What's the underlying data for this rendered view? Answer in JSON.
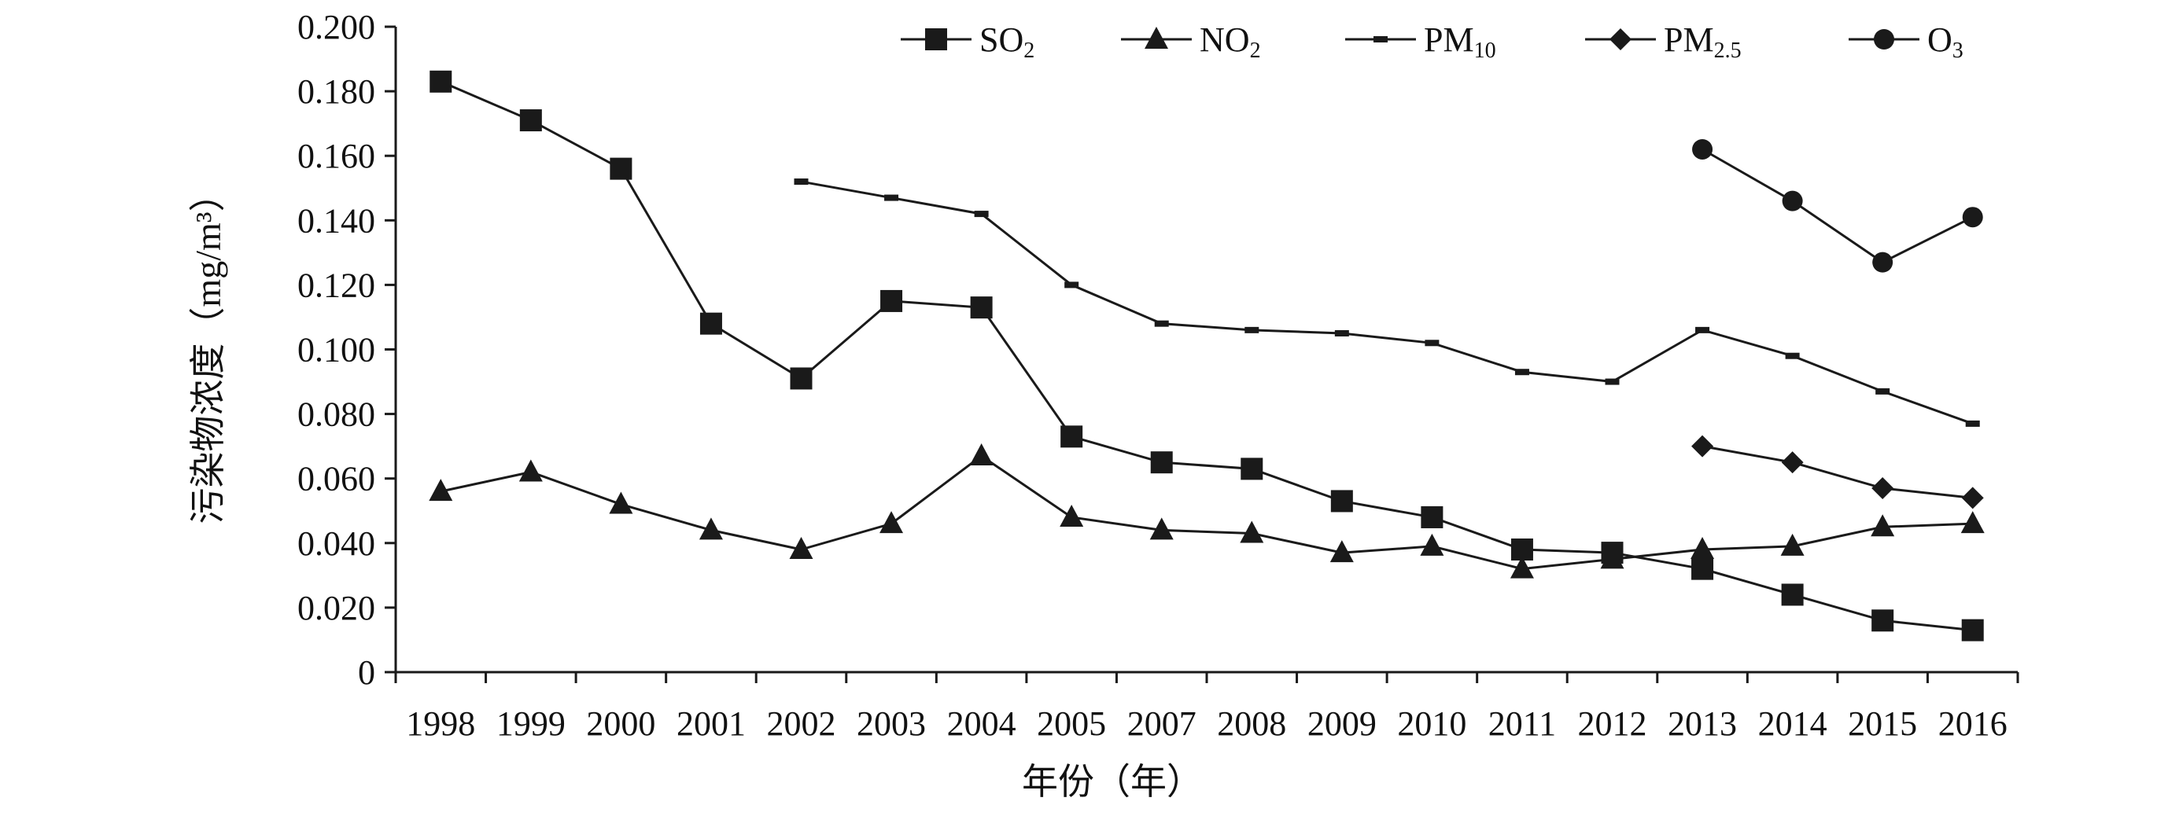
{
  "chart_data": {
    "type": "line",
    "categories": [
      "1998",
      "1999",
      "2000",
      "2001",
      "2002",
      "2003",
      "2004",
      "2005",
      "2007",
      "2008",
      "2009",
      "2010",
      "2011",
      "2012",
      "2013",
      "2014",
      "2015",
      "2016"
    ],
    "xlabel": "年份（年）",
    "ylabel": "污染物浓度（mg/m³）",
    "ylim": [
      0,
      0.2
    ],
    "yticks": [
      "0",
      "0.020",
      "0.040",
      "0.060",
      "0.080",
      "0.100",
      "0.120",
      "0.140",
      "0.160",
      "0.180",
      "0.200"
    ],
    "grid": false,
    "legend_position": "top",
    "series": [
      {
        "name": "SO2",
        "name_base": "SO",
        "name_sub": "2",
        "marker": "square",
        "values": [
          0.183,
          0.171,
          0.156,
          0.108,
          0.091,
          0.115,
          0.113,
          0.073,
          0.065,
          0.063,
          0.053,
          0.048,
          0.038,
          0.037,
          0.032,
          0.024,
          0.016,
          0.013
        ]
      },
      {
        "name": "NO2",
        "name_base": "NO",
        "name_sub": "2",
        "marker": "triangle",
        "values": [
          0.056,
          0.062,
          0.052,
          0.044,
          0.038,
          0.046,
          0.067,
          0.048,
          0.044,
          0.043,
          0.037,
          0.039,
          0.032,
          0.035,
          0.038,
          0.039,
          0.045,
          0.046
        ]
      },
      {
        "name": "PM10",
        "name_base": "PM",
        "name_sub": "10",
        "marker": "dash",
        "values": [
          null,
          null,
          null,
          null,
          0.152,
          0.147,
          0.142,
          0.12,
          0.108,
          0.106,
          0.105,
          0.102,
          0.093,
          0.09,
          0.106,
          0.098,
          0.087,
          0.077
        ]
      },
      {
        "name": "PM2.5",
        "name_base": "PM",
        "name_sub": "2.5",
        "marker": "diamond",
        "values": [
          null,
          null,
          null,
          null,
          null,
          null,
          null,
          null,
          null,
          null,
          null,
          null,
          null,
          null,
          0.07,
          0.065,
          0.057,
          0.054
        ]
      },
      {
        "name": "O3",
        "name_base": "O",
        "name_sub": "3",
        "marker": "circle",
        "values": [
          null,
          null,
          null,
          null,
          null,
          null,
          null,
          null,
          null,
          null,
          null,
          null,
          null,
          null,
          0.162,
          0.146,
          0.127,
          0.141
        ]
      }
    ],
    "colors": {
      "line": "#1a1a1a",
      "marker": "#1a1a1a"
    }
  }
}
